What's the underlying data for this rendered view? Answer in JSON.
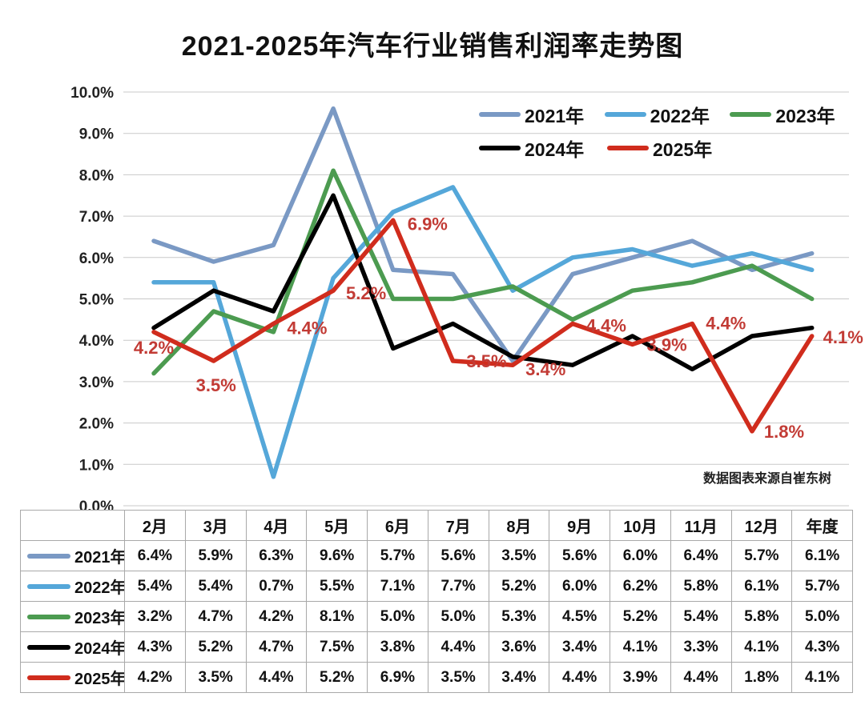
{
  "title": "2021-2025年汽车行业销售利润率走势图",
  "source_note": "数据图表来源自崔东树",
  "chart_data": {
    "type": "line",
    "categories": [
      "2月",
      "3月",
      "4月",
      "5月",
      "6月",
      "7月",
      "8月",
      "9月",
      "10月",
      "11月",
      "12月",
      "年度"
    ],
    "series": [
      {
        "name": "2021年",
        "color": "#7A99C4",
        "values": [
          6.4,
          5.9,
          6.3,
          9.6,
          5.7,
          5.6,
          3.5,
          5.6,
          6.0,
          6.4,
          5.7,
          6.1
        ]
      },
      {
        "name": "2022年",
        "color": "#55A7D9",
        "values": [
          5.4,
          5.4,
          0.7,
          5.5,
          7.1,
          7.7,
          5.2,
          6.0,
          6.2,
          5.8,
          6.1,
          5.7
        ]
      },
      {
        "name": "2023年",
        "color": "#4C9B50",
        "values": [
          3.2,
          4.7,
          4.2,
          8.1,
          5.0,
          5.0,
          5.3,
          4.5,
          5.2,
          5.4,
          5.8,
          5.0
        ]
      },
      {
        "name": "2024年",
        "color": "#000000",
        "values": [
          4.3,
          5.2,
          4.7,
          7.5,
          3.8,
          4.4,
          3.6,
          3.4,
          4.1,
          3.3,
          4.1,
          4.3
        ]
      },
      {
        "name": "2025年",
        "color": "#D02C1D",
        "values": [
          4.2,
          3.5,
          4.4,
          5.2,
          6.9,
          3.5,
          3.4,
          4.4,
          3.9,
          4.4,
          1.8,
          4.1
        ]
      }
    ],
    "labeled_series": "2025年",
    "label_color": "#C23B35",
    "value_suffix": "%",
    "yticks": [
      0,
      1,
      2,
      3,
      4,
      5,
      6,
      7,
      8,
      9,
      10
    ],
    "ylim": [
      0,
      10
    ],
    "grid": true,
    "legend_rows": [
      [
        "2021年",
        "2022年",
        "2023年"
      ],
      [
        "2024年",
        "2025年"
      ]
    ],
    "legend_position": "top-right-inside",
    "gridline_color": "#C9C9C9"
  }
}
